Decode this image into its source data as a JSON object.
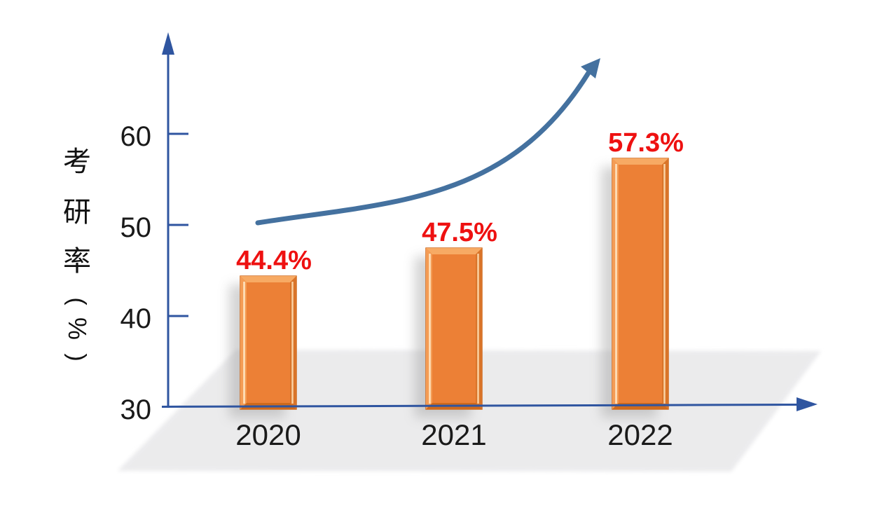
{
  "chart_data": {
    "type": "bar",
    "title": "",
    "categories": [
      "2020",
      "2021",
      "2022"
    ],
    "values": [
      44.4,
      47.5,
      57.3
    ],
    "value_labels": [
      "44.4%",
      "47.5%",
      "57.3%"
    ],
    "ylabel": "考研率（%）",
    "ylabel_chars": [
      "考",
      "研",
      "率",
      "(",
      "%",
      ")"
    ],
    "ytick_labels": [
      "60",
      "50",
      "40",
      "30"
    ],
    "yticks": [
      60,
      50,
      40,
      30
    ],
    "ylim": [
      30,
      65
    ],
    "xlabel": "",
    "grid": false,
    "legend": null,
    "annotations": [
      {
        "type": "trend-arrow",
        "description": "curved upward arrow over bars"
      }
    ],
    "colors": {
      "bar": "#EC8036",
      "bar_bevel_light": "#F7AA64",
      "bar_bevel_dark": "#CF6A1C",
      "value_label": "#EE1111",
      "axis": "#2F55A0",
      "trend_arrow": "#44719F",
      "floor": "#EAEAEC",
      "text": "#1A1A1A"
    }
  }
}
